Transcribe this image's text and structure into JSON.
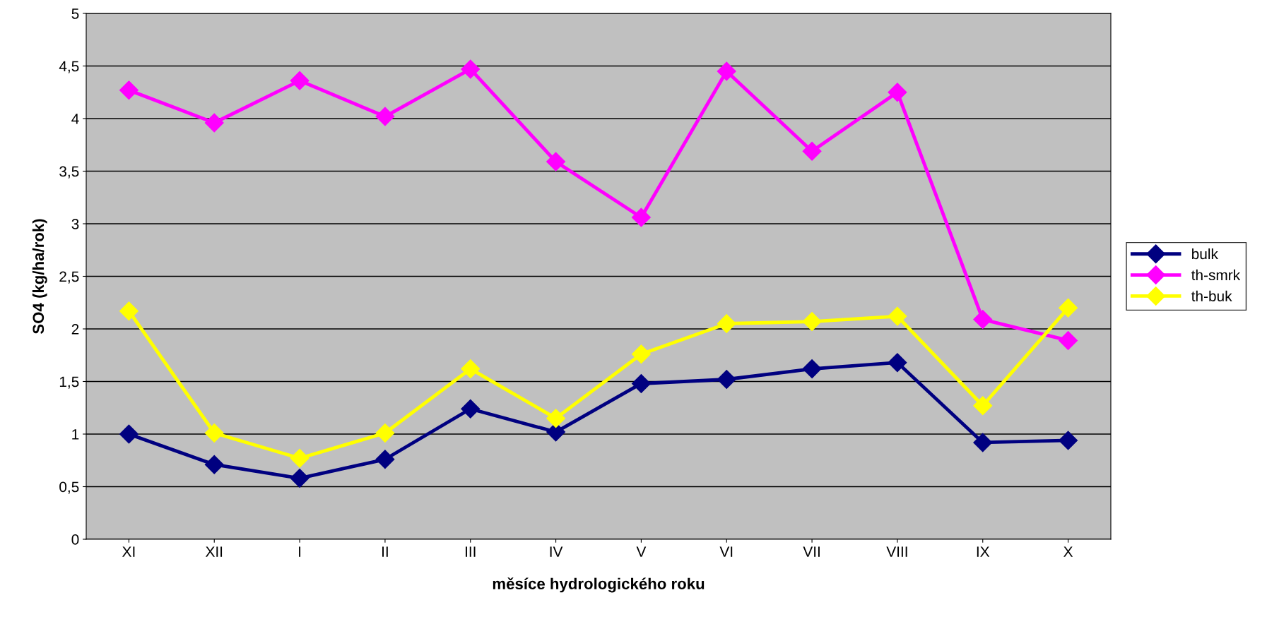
{
  "chart_data": {
    "type": "line",
    "xlabel": "měsíce hydrologického roku",
    "ylabel": "SO4 (kg/ha/rok)",
    "categories": [
      "XI",
      "XII",
      "I",
      "II",
      "III",
      "IV",
      "V",
      "VI",
      "VII",
      "VIII",
      "IX",
      "X"
    ],
    "series": [
      {
        "name": "bulk",
        "color": "#000080",
        "values": [
          1.0,
          0.71,
          0.58,
          0.76,
          1.24,
          1.02,
          1.48,
          1.52,
          1.62,
          1.68,
          0.92,
          0.94
        ]
      },
      {
        "name": "th-smrk",
        "color": "#ff00ff",
        "values": [
          4.27,
          3.96,
          4.36,
          4.02,
          4.47,
          3.59,
          3.06,
          4.45,
          3.69,
          4.25,
          2.09,
          1.89
        ]
      },
      {
        "name": "th-buk",
        "color": "#ffff00",
        "values": [
          2.17,
          1.01,
          0.77,
          1.01,
          1.62,
          1.15,
          1.76,
          2.05,
          2.07,
          2.12,
          1.27,
          2.2
        ]
      }
    ],
    "ylim": [
      0,
      5
    ],
    "yticks": [
      0,
      {
        "value": 0.5,
        "label": "0,5"
      },
      1,
      {
        "value": 1.5,
        "label": "1,5"
      },
      2,
      {
        "value": 2.5,
        "label": "2,5"
      },
      3,
      {
        "value": 3.5,
        "label": "3,5"
      },
      4,
      {
        "value": 4.5,
        "label": "4,5"
      },
      5
    ],
    "grid": "y",
    "legend": "right",
    "marker": "diamond",
    "line_style": "solid"
  }
}
